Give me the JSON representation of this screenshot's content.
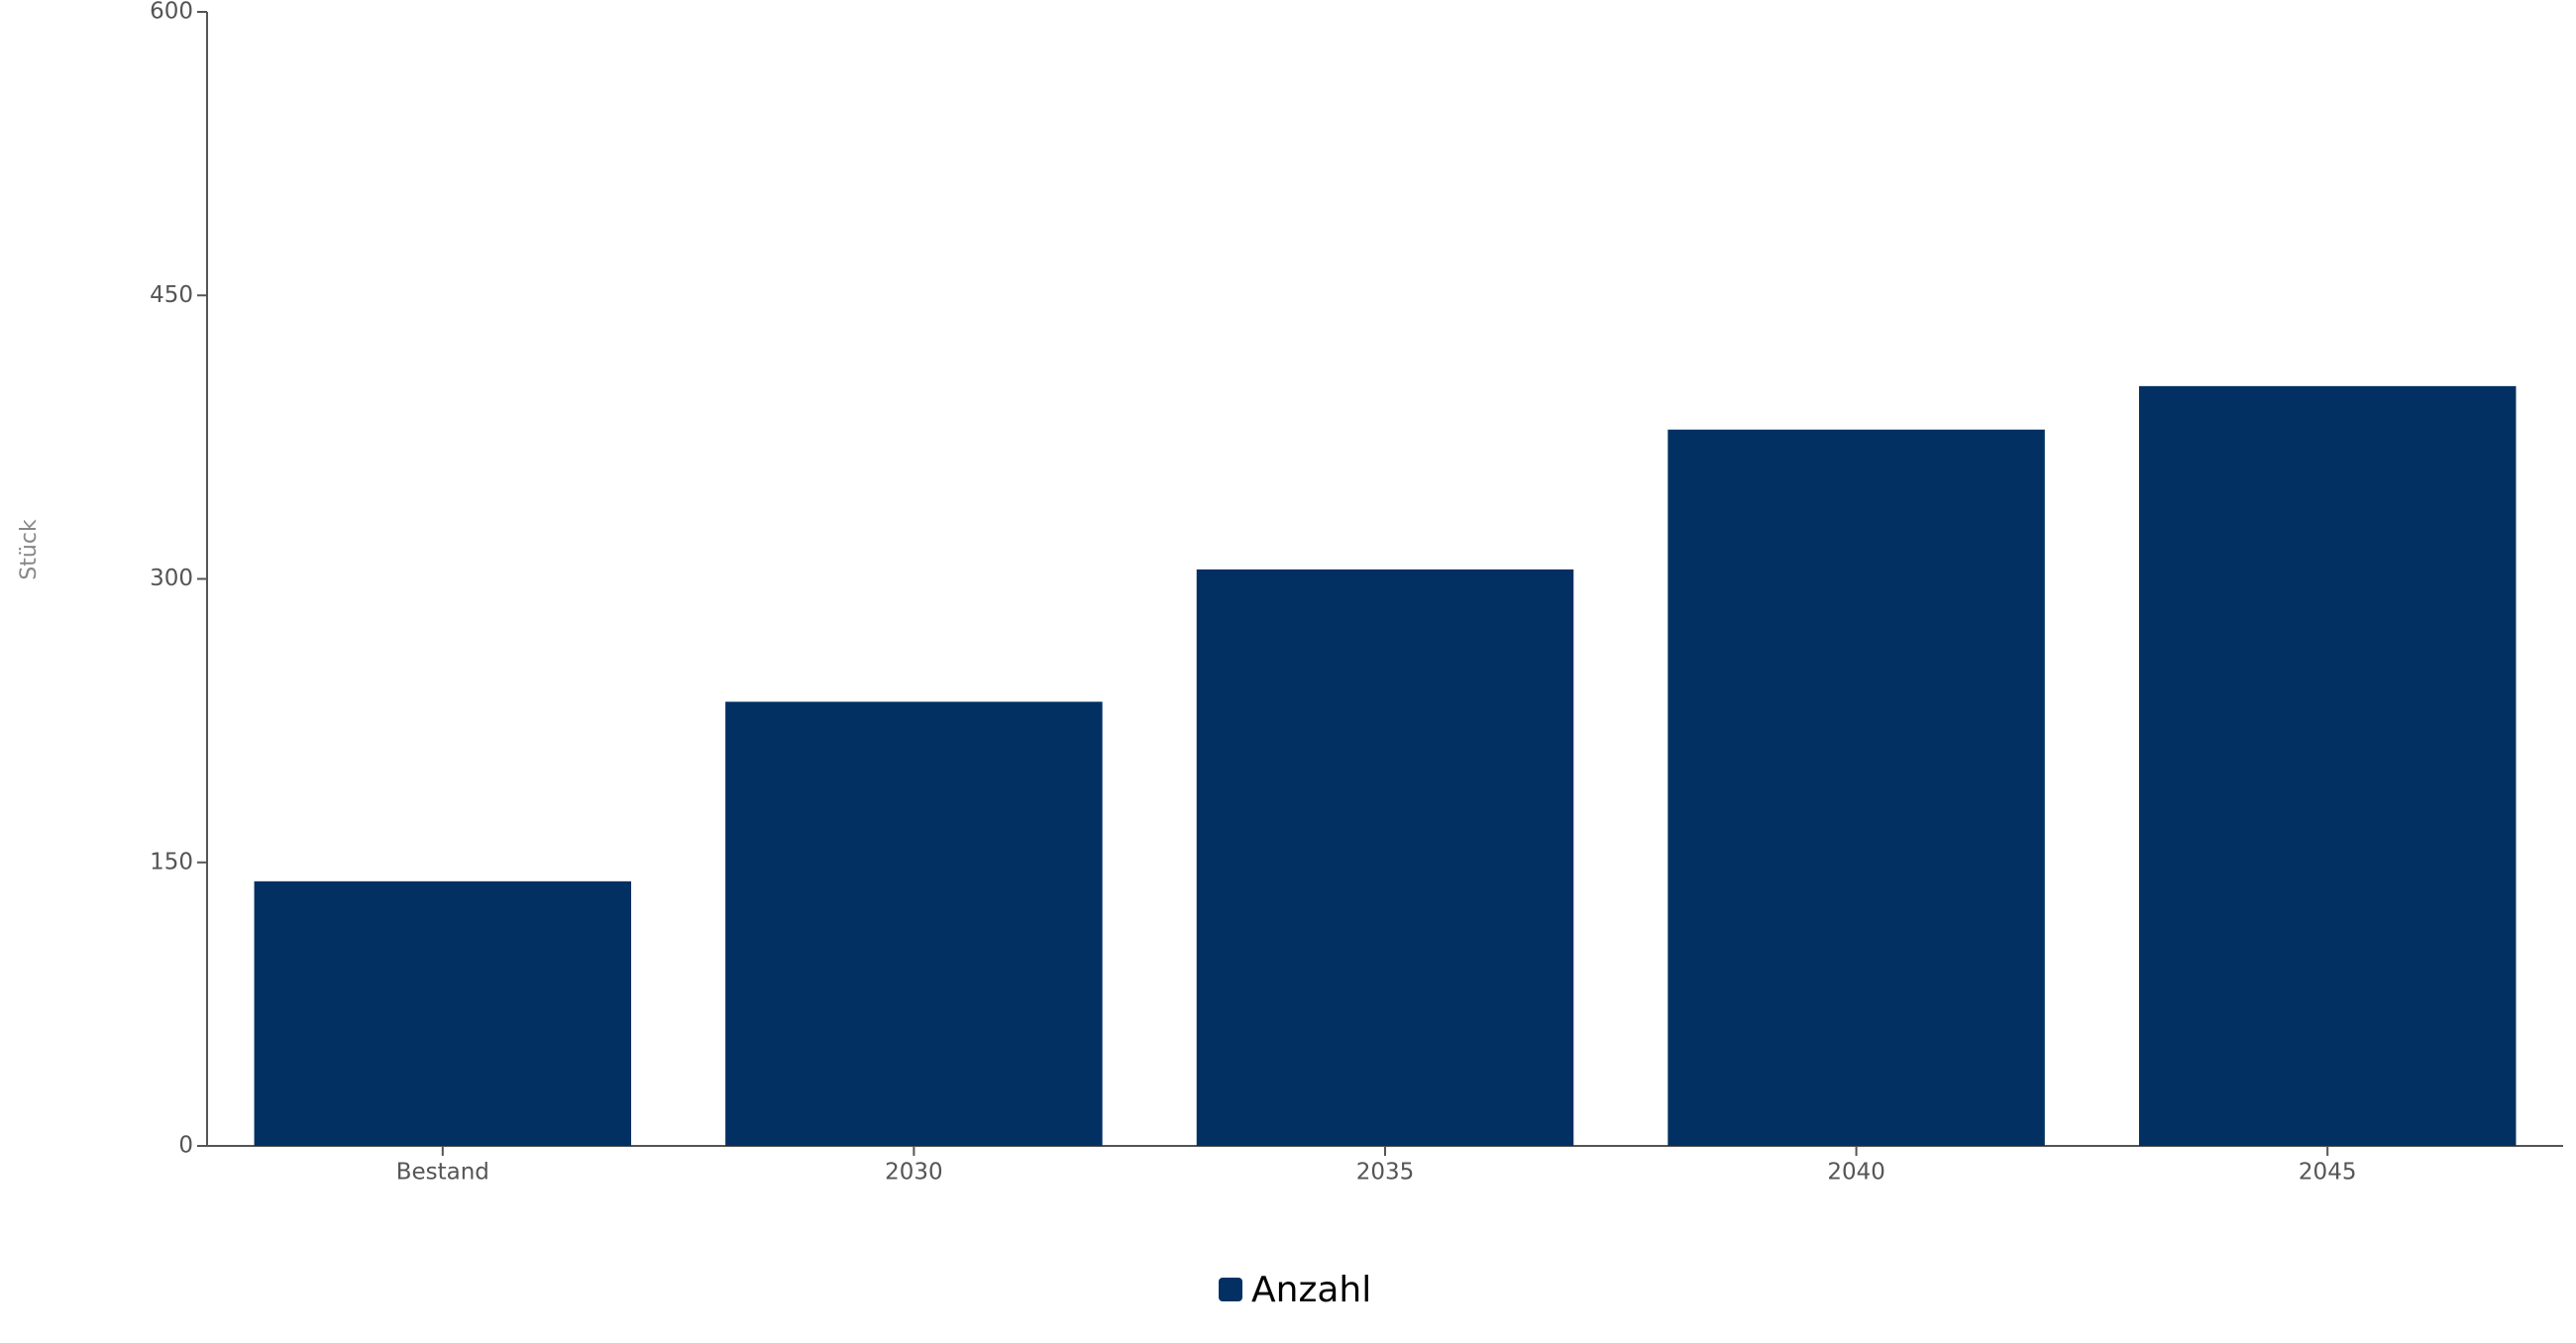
{
  "chart_data": {
    "type": "bar",
    "y_label": "Stück",
    "categories": [
      "Bestand",
      "2030",
      "2035",
      "2040",
      "2045"
    ],
    "series": [
      {
        "name": "Anzahl",
        "color": "#023062",
        "values": [
          140,
          235,
          305,
          379,
          402
        ]
      }
    ],
    "ylim": [
      0,
      600
    ],
    "yticks": [
      0,
      150,
      300,
      450,
      600
    ],
    "grid": false,
    "legend": "bottom"
  }
}
